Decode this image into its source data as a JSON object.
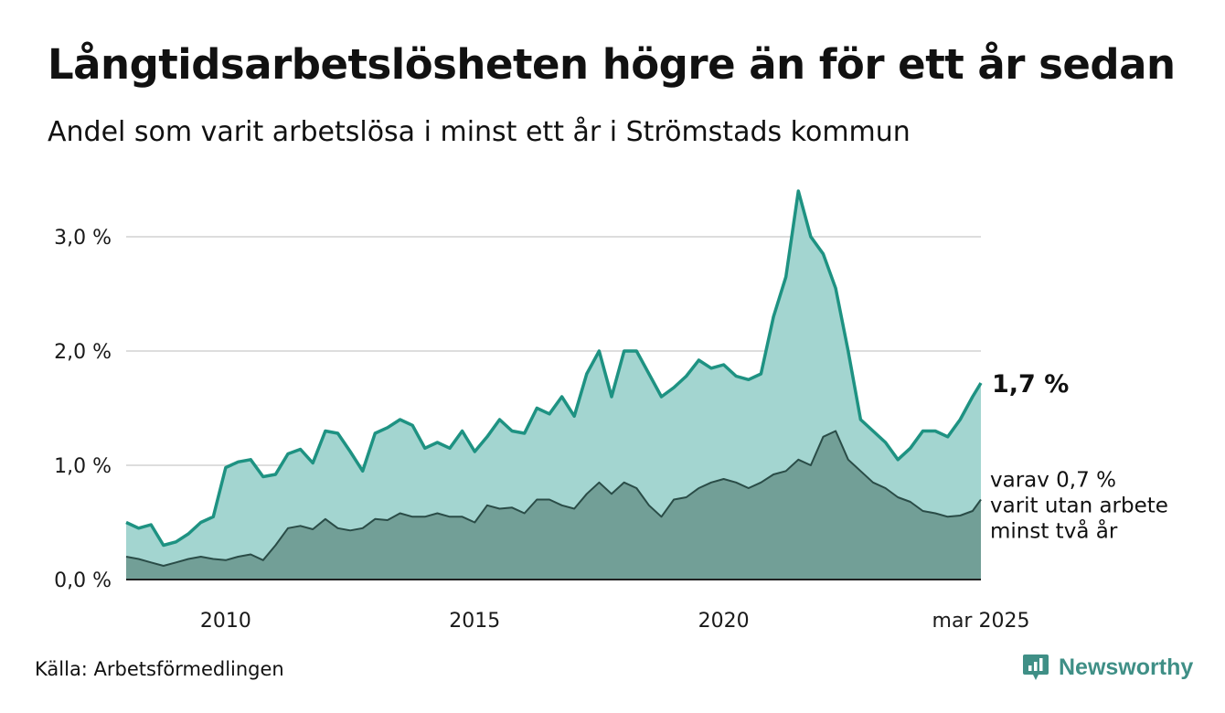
{
  "title": "Långtidsarbetslösheten högre än för ett år sedan",
  "subtitle": "Andel som varit arbetslösa i minst ett år i Strömstads kommun",
  "source": "Källa: Arbetsförmedlingen",
  "brand": "Newsworthy",
  "colors": {
    "total_area": "#a3d5d0",
    "total_line": "#1e9282",
    "sub_area": "#729f97",
    "sub_line": "#2a4c47",
    "grid": "#dddddd",
    "brand": "#3f8f86"
  },
  "chart_data": {
    "type": "area",
    "title": "Långtidsarbetslösheten högre än för ett år sedan",
    "subtitle": "Andel som varit arbetslösa i minst ett år i Strömstads kommun",
    "x_start": "2008-01",
    "x_end": "2025-03",
    "x_ticks": [
      {
        "date": "2010-01",
        "label": "2010"
      },
      {
        "date": "2015-01",
        "label": "2015"
      },
      {
        "date": "2020-01",
        "label": "2020"
      },
      {
        "date": "2025-03",
        "label": "mar 2025"
      }
    ],
    "y_ticks": [
      {
        "value": 0,
        "label": "0,0 %"
      },
      {
        "value": 1,
        "label": "1,0 %"
      },
      {
        "value": 2,
        "label": "2,0 %"
      },
      {
        "value": 3,
        "label": "3,0 %"
      }
    ],
    "ylim": [
      0,
      3.4
    ],
    "grid": true,
    "series": [
      {
        "key": "total",
        "end_label": "1,7 %",
        "points": [
          [
            "2008-01",
            0.5
          ],
          [
            "2008-04",
            0.45
          ],
          [
            "2008-07",
            0.48
          ],
          [
            "2008-10",
            0.3
          ],
          [
            "2009-01",
            0.33
          ],
          [
            "2009-04",
            0.4
          ],
          [
            "2009-07",
            0.5
          ],
          [
            "2009-10",
            0.55
          ],
          [
            "2010-01",
            0.98
          ],
          [
            "2010-04",
            1.03
          ],
          [
            "2010-07",
            1.05
          ],
          [
            "2010-10",
            0.9
          ],
          [
            "2011-01",
            0.92
          ],
          [
            "2011-04",
            1.1
          ],
          [
            "2011-07",
            1.14
          ],
          [
            "2011-10",
            1.02
          ],
          [
            "2012-01",
            1.3
          ],
          [
            "2012-04",
            1.28
          ],
          [
            "2012-07",
            1.12
          ],
          [
            "2012-10",
            0.95
          ],
          [
            "2013-01",
            1.28
          ],
          [
            "2013-04",
            1.33
          ],
          [
            "2013-07",
            1.4
          ],
          [
            "2013-10",
            1.35
          ],
          [
            "2014-01",
            1.15
          ],
          [
            "2014-04",
            1.2
          ],
          [
            "2014-07",
            1.15
          ],
          [
            "2014-10",
            1.3
          ],
          [
            "2015-01",
            1.12
          ],
          [
            "2015-04",
            1.25
          ],
          [
            "2015-07",
            1.4
          ],
          [
            "2015-10",
            1.3
          ],
          [
            "2016-01",
            1.28
          ],
          [
            "2016-04",
            1.5
          ],
          [
            "2016-07",
            1.45
          ],
          [
            "2016-10",
            1.6
          ],
          [
            "2017-01",
            1.43
          ],
          [
            "2017-04",
            1.8
          ],
          [
            "2017-07",
            2.0
          ],
          [
            "2017-10",
            1.6
          ],
          [
            "2018-01",
            2.0
          ],
          [
            "2018-04",
            2.0
          ],
          [
            "2018-07",
            1.8
          ],
          [
            "2018-10",
            1.6
          ],
          [
            "2019-01",
            1.68
          ],
          [
            "2019-04",
            1.78
          ],
          [
            "2019-07",
            1.92
          ],
          [
            "2019-10",
            1.85
          ],
          [
            "2020-01",
            1.88
          ],
          [
            "2020-04",
            1.78
          ],
          [
            "2020-07",
            1.75
          ],
          [
            "2020-10",
            1.8
          ],
          [
            "2021-01",
            2.3
          ],
          [
            "2021-04",
            2.65
          ],
          [
            "2021-07",
            3.4
          ],
          [
            "2021-10",
            3.0
          ],
          [
            "2022-01",
            2.85
          ],
          [
            "2022-04",
            2.55
          ],
          [
            "2022-07",
            2.0
          ],
          [
            "2022-10",
            1.4
          ],
          [
            "2023-01",
            1.3
          ],
          [
            "2023-04",
            1.2
          ],
          [
            "2023-07",
            1.05
          ],
          [
            "2023-10",
            1.15
          ],
          [
            "2024-01",
            1.3
          ],
          [
            "2024-04",
            1.3
          ],
          [
            "2024-07",
            1.25
          ],
          [
            "2024-10",
            1.4
          ],
          [
            "2025-01",
            1.6
          ],
          [
            "2025-03",
            1.72
          ]
        ]
      },
      {
        "key": "sub",
        "end_label": [
          "varav 0,7 %",
          "varit utan arbete",
          "minst två år"
        ],
        "points": [
          [
            "2008-01",
            0.2
          ],
          [
            "2008-04",
            0.18
          ],
          [
            "2008-07",
            0.15
          ],
          [
            "2008-10",
            0.12
          ],
          [
            "2009-01",
            0.15
          ],
          [
            "2009-04",
            0.18
          ],
          [
            "2009-07",
            0.2
          ],
          [
            "2009-10",
            0.18
          ],
          [
            "2010-01",
            0.17
          ],
          [
            "2010-04",
            0.2
          ],
          [
            "2010-07",
            0.22
          ],
          [
            "2010-10",
            0.17
          ],
          [
            "2011-01",
            0.3
          ],
          [
            "2011-04",
            0.45
          ],
          [
            "2011-07",
            0.47
          ],
          [
            "2011-10",
            0.44
          ],
          [
            "2012-01",
            0.53
          ],
          [
            "2012-04",
            0.45
          ],
          [
            "2012-07",
            0.43
          ],
          [
            "2012-10",
            0.45
          ],
          [
            "2013-01",
            0.53
          ],
          [
            "2013-04",
            0.52
          ],
          [
            "2013-07",
            0.58
          ],
          [
            "2013-10",
            0.55
          ],
          [
            "2014-01",
            0.55
          ],
          [
            "2014-04",
            0.58
          ],
          [
            "2014-07",
            0.55
          ],
          [
            "2014-10",
            0.55
          ],
          [
            "2015-01",
            0.5
          ],
          [
            "2015-04",
            0.65
          ],
          [
            "2015-07",
            0.62
          ],
          [
            "2015-10",
            0.63
          ],
          [
            "2016-01",
            0.58
          ],
          [
            "2016-04",
            0.7
          ],
          [
            "2016-07",
            0.7
          ],
          [
            "2016-10",
            0.65
          ],
          [
            "2017-01",
            0.62
          ],
          [
            "2017-04",
            0.75
          ],
          [
            "2017-07",
            0.85
          ],
          [
            "2017-10",
            0.75
          ],
          [
            "2018-01",
            0.85
          ],
          [
            "2018-04",
            0.8
          ],
          [
            "2018-07",
            0.65
          ],
          [
            "2018-10",
            0.55
          ],
          [
            "2019-01",
            0.7
          ],
          [
            "2019-04",
            0.72
          ],
          [
            "2019-07",
            0.8
          ],
          [
            "2019-10",
            0.85
          ],
          [
            "2020-01",
            0.88
          ],
          [
            "2020-04",
            0.85
          ],
          [
            "2020-07",
            0.8
          ],
          [
            "2020-10",
            0.85
          ],
          [
            "2021-01",
            0.92
          ],
          [
            "2021-04",
            0.95
          ],
          [
            "2021-07",
            1.05
          ],
          [
            "2021-10",
            1.0
          ],
          [
            "2022-01",
            1.25
          ],
          [
            "2022-04",
            1.3
          ],
          [
            "2022-07",
            1.05
          ],
          [
            "2022-10",
            0.95
          ],
          [
            "2023-01",
            0.85
          ],
          [
            "2023-04",
            0.8
          ],
          [
            "2023-07",
            0.72
          ],
          [
            "2023-10",
            0.68
          ],
          [
            "2024-01",
            0.6
          ],
          [
            "2024-04",
            0.58
          ],
          [
            "2024-07",
            0.55
          ],
          [
            "2024-10",
            0.56
          ],
          [
            "2025-01",
            0.6
          ],
          [
            "2025-03",
            0.7
          ]
        ]
      }
    ]
  }
}
